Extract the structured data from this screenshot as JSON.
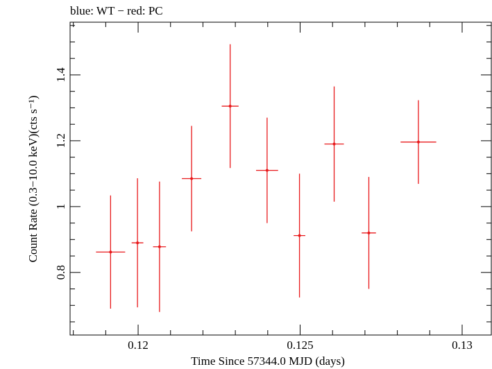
{
  "chart_data": {
    "type": "scatter",
    "title": "blue: WT − red: PC",
    "xlabel": "Time Since 57344.0 MJD (days)",
    "ylabel": "Count Rate (0.3−10.0 keV)(cts s⁻¹)",
    "xlim": [
      0.1179,
      0.1309
    ],
    "ylim": [
      0.61,
      1.56
    ],
    "x_ticks": [
      0.12,
      0.125,
      0.13
    ],
    "x_tick_labels": [
      "0.12",
      "0.125",
      "0.13"
    ],
    "y_ticks": [
      0.8,
      1.0,
      1.2,
      1.4
    ],
    "y_tick_labels": [
      "0.8",
      "1",
      "1.2",
      "1.4"
    ],
    "grid": false,
    "series": [
      {
        "name": "PC",
        "color": "#e8191b",
        "points": [
          {
            "x": 0.11915,
            "xerr": 0.00045,
            "y": 0.862,
            "yerr": 0.172
          },
          {
            "x": 0.11998,
            "xerr": 0.00018,
            "y": 0.89,
            "yerr": 0.196
          },
          {
            "x": 0.12066,
            "xerr": 0.0002,
            "y": 0.878,
            "yerr": 0.198
          },
          {
            "x": 0.12165,
            "xerr": 0.0003,
            "y": 1.085,
            "yerr": 0.16
          },
          {
            "x": 0.12284,
            "xerr": 0.00026,
            "y": 1.305,
            "yerr": 0.188
          },
          {
            "x": 0.12398,
            "xerr": 0.00034,
            "y": 1.11,
            "yerr": 0.16
          },
          {
            "x": 0.12498,
            "xerr": 0.00018,
            "y": 0.912,
            "yerr": 0.188
          },
          {
            "x": 0.12605,
            "xerr": 0.0003,
            "y": 1.19,
            "yerr": 0.175
          },
          {
            "x": 0.12712,
            "xerr": 0.00022,
            "y": 0.92,
            "yerr": 0.17
          },
          {
            "x": 0.12865,
            "xerr": 0.00055,
            "y": 1.196,
            "yerr": 0.127
          }
        ]
      }
    ]
  }
}
